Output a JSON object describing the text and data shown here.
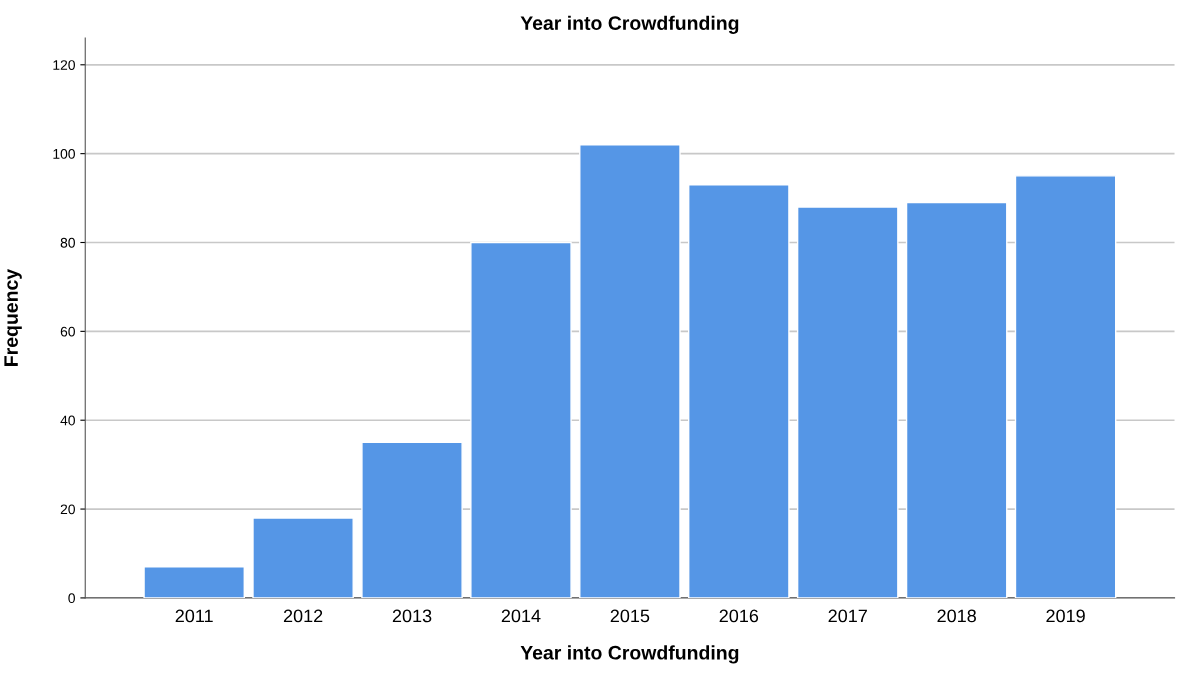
{
  "chart_data": {
    "type": "bar",
    "title": "Year into Crowdfunding",
    "xlabel": "Year into Crowdfunding",
    "ylabel": "Frequency",
    "categories": [
      "2011",
      "2012",
      "2013",
      "2014",
      "2015",
      "2016",
      "2017",
      "2018",
      "2019"
    ],
    "values": [
      7,
      18,
      35,
      80,
      102,
      93,
      88,
      89,
      95
    ],
    "color": "#5596e6",
    "ylim": [
      0,
      126
    ],
    "yticks": [
      0,
      20,
      40,
      60,
      80,
      100,
      120
    ],
    "grid": "y",
    "legend": false
  }
}
